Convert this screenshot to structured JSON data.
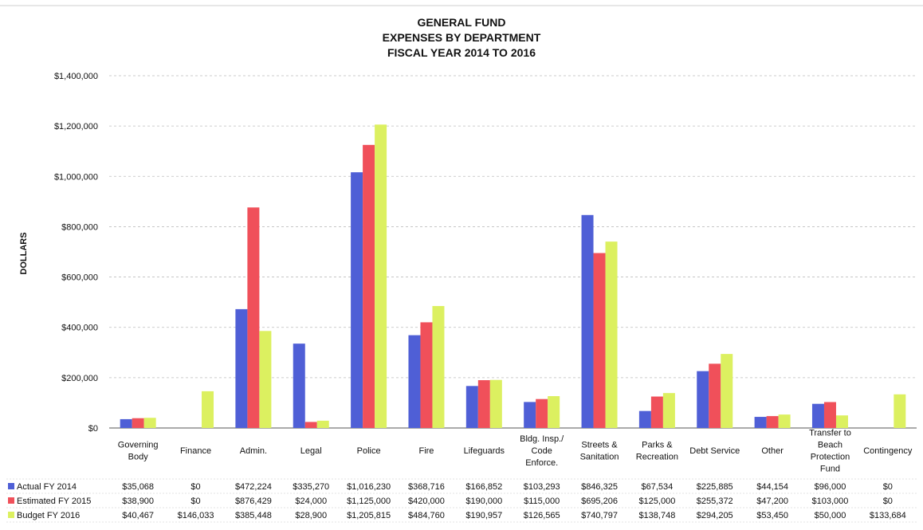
{
  "chart_data": {
    "type": "bar",
    "title": [
      "GENERAL FUND",
      "EXPENSES BY DEPARTMENT",
      "FISCAL YEAR 2014 TO 2016"
    ],
    "ylabel": "DOLLARS",
    "xlabel": "",
    "ylim": [
      0,
      1400000
    ],
    "yticks": [
      0,
      200000,
      400000,
      600000,
      800000,
      1000000,
      1200000,
      1400000
    ],
    "ytick_labels": [
      "$0",
      "$200,000",
      "$400,000",
      "$600,000",
      "$800,000",
      "$1,000,000",
      "$1,200,000",
      "$1,400,000"
    ],
    "grid": true,
    "legend_placement": "bottom-left (data table)",
    "categories": [
      [
        "Governing",
        "Body"
      ],
      [
        "Finance"
      ],
      [
        "Admin."
      ],
      [
        "Legal"
      ],
      [
        "Police"
      ],
      [
        "Fire"
      ],
      [
        "Lifeguards"
      ],
      [
        "Bldg. Insp./",
        "Code",
        "Enforce."
      ],
      [
        "Streets &",
        "Sanitation"
      ],
      [
        "Parks &",
        "Recreation"
      ],
      [
        "Debt Service"
      ],
      [
        "Other"
      ],
      [
        "Transfer to",
        "Beach",
        "Protection",
        "Fund"
      ],
      [
        "Contingency"
      ]
    ],
    "series": [
      {
        "name": "Actual FY 2014",
        "color": "#4f5fd6",
        "values": [
          35068,
          0,
          472224,
          335270,
          1016230,
          368716,
          166852,
          103293,
          846325,
          67534,
          225885,
          44154,
          96000,
          0
        ],
        "labels": [
          "$35,068",
          "$0",
          "$472,224",
          "$335,270",
          "$1,016,230",
          "$368,716",
          "$166,852",
          "$103,293",
          "$846,325",
          "$67,534",
          "$225,885",
          "$44,154",
          "$96,000",
          "$0"
        ]
      },
      {
        "name": "Estimated FY 2015",
        "color": "#f0505a",
        "values": [
          38900,
          0,
          876429,
          24000,
          1125000,
          420000,
          190000,
          115000,
          695206,
          125000,
          255372,
          47200,
          103000,
          0
        ],
        "labels": [
          "$38,900",
          "$0",
          "$876,429",
          "$24,000",
          "$1,125,000",
          "$420,000",
          "$190,000",
          "$115,000",
          "$695,206",
          "$125,000",
          "$255,372",
          "$47,200",
          "$103,000",
          "$0"
        ]
      },
      {
        "name": "Budget FY 2016",
        "color": "#dcf060",
        "values": [
          40467,
          146033,
          385448,
          28900,
          1205815,
          484760,
          190957,
          126565,
          740797,
          138748,
          294205,
          53450,
          50000,
          133684
        ],
        "labels": [
          "$40,467",
          "$146,033",
          "$385,448",
          "$28,900",
          "$1,205,815",
          "$484,760",
          "$190,957",
          "$126,565",
          "$740,797",
          "$138,748",
          "$294,205",
          "$53,450",
          "$50,000",
          "$133,684"
        ]
      }
    ]
  }
}
